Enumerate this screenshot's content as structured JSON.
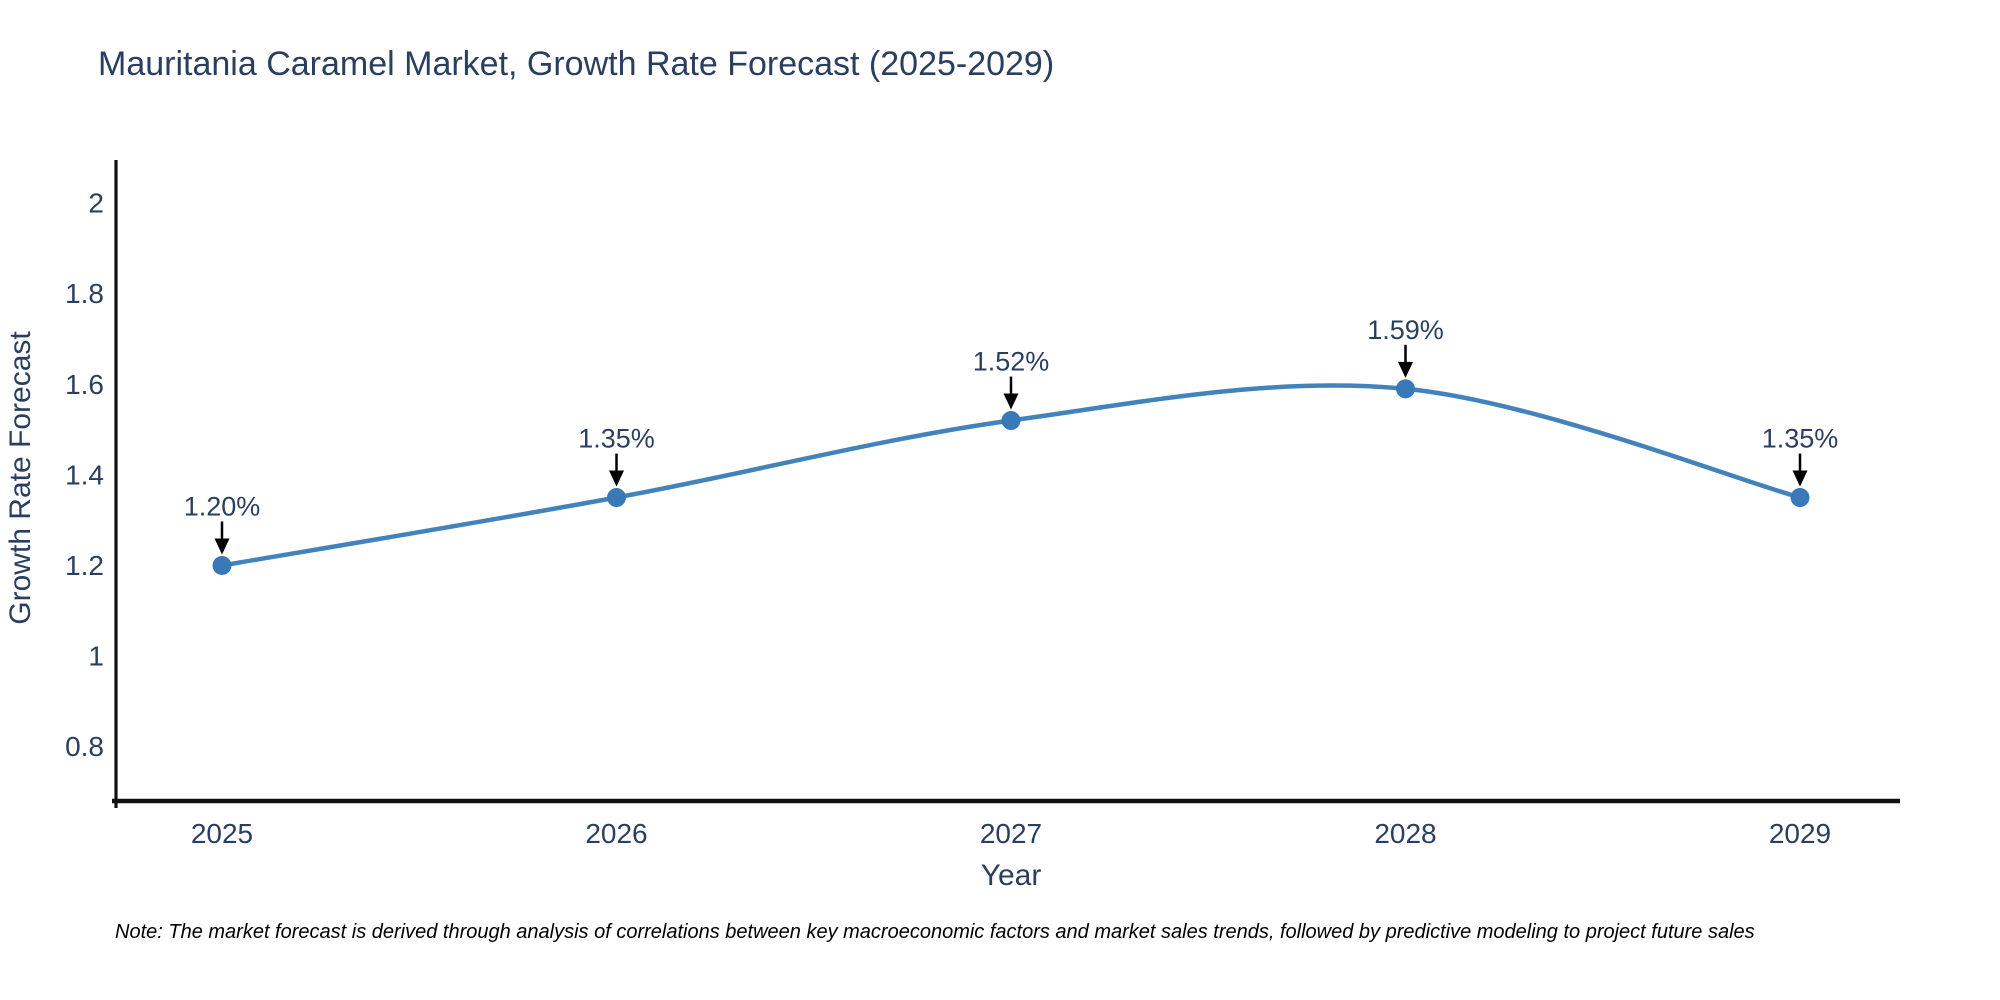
{
  "title": "Mauritania Caramel Market, Growth Rate Forecast (2025-2029)",
  "note": "Note: The market forecast is derived through analysis of correlations between key macroeconomic factors and market sales trends, followed by predictive modeling to project future sales",
  "chart_data": {
    "type": "line",
    "line_shape": "spline",
    "title": "Mauritania Caramel Market, Growth Rate Forecast (2025-2029)",
    "xlabel": "Year",
    "ylabel": "Growth Rate Forecast",
    "categories": [
      "2025",
      "2026",
      "2027",
      "2028",
      "2029"
    ],
    "series": [
      {
        "name": "Growth Rate Forecast",
        "values": [
          1.2,
          1.35,
          1.52,
          1.59,
          1.35
        ]
      }
    ],
    "point_labels": [
      "1.20%",
      "1.35%",
      "1.52%",
      "1.59%",
      "1.35%"
    ],
    "annotation_style": "label-with-down-arrow-to-point",
    "y_tick_labels": [
      "2",
      "1.8",
      "1.6",
      "1.4",
      "1.2",
      "1",
      "0.8"
    ],
    "y_tick_values": [
      2,
      1.8,
      1.6,
      1.4,
      1.2,
      1,
      0.8
    ],
    "ylim": [
      0.68,
      2.1
    ],
    "grid": false,
    "legend": "none",
    "colors": {
      "line": "#4383bc",
      "marker": "#3a79b7",
      "axis": "#111111",
      "text": "#2a3f5f",
      "arrow": "#000000",
      "note_text": "#000000",
      "background": "#ffffff"
    }
  }
}
